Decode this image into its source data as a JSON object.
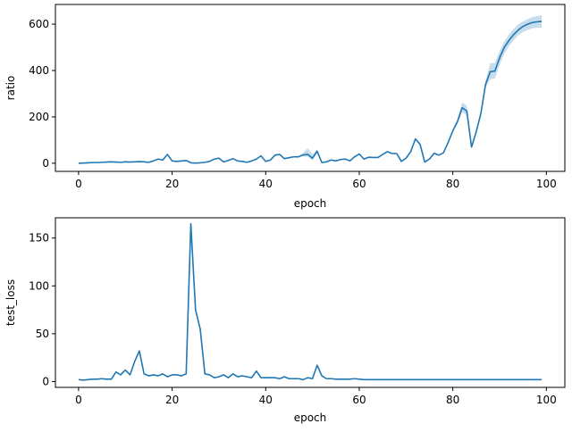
{
  "chart_data": [
    {
      "type": "line",
      "xlabel": "epoch",
      "ylabel": "ratio",
      "xlim": [
        -4.95,
        103.95
      ],
      "ylim": [
        -35,
        685
      ],
      "xticks": [
        0,
        20,
        40,
        60,
        80,
        100
      ],
      "yticks": [
        0,
        200,
        400,
        600
      ],
      "grid": false,
      "color": "#1f77b4",
      "band_color": "#1f77b4",
      "series": [
        {
          "x": [
            0,
            1,
            2,
            3,
            4,
            5,
            6,
            7,
            8,
            9,
            10,
            11,
            12,
            13,
            14,
            15,
            16,
            17,
            18,
            19,
            20,
            21,
            22,
            23,
            24,
            25,
            26,
            27,
            28,
            29,
            30,
            31,
            32,
            33,
            34,
            35,
            36,
            37,
            38,
            39,
            40,
            41,
            42,
            43,
            44,
            45,
            46,
            47,
            48,
            49,
            50,
            51,
            52,
            53,
            54,
            55,
            56,
            57,
            58,
            59,
            60,
            61,
            62,
            63,
            64,
            65,
            66,
            67,
            68,
            69,
            70,
            71,
            72,
            73,
            74,
            75,
            76,
            77,
            78,
            79,
            80,
            81,
            82,
            83,
            84,
            85,
            86,
            87,
            88,
            89,
            90,
            91,
            92,
            93,
            94,
            95,
            96,
            97,
            98,
            99
          ],
          "values": [
            0,
            1,
            2,
            3,
            3,
            4,
            5,
            6,
            5,
            4,
            6,
            5,
            6,
            7,
            6,
            4,
            10,
            18,
            14,
            38,
            10,
            8,
            10,
            12,
            2,
            1,
            2,
            4,
            8,
            18,
            22,
            6,
            12,
            20,
            10,
            8,
            4,
            10,
            18,
            32,
            8,
            14,
            35,
            38,
            20,
            24,
            28,
            28,
            36,
            38,
            22,
            52,
            3,
            6,
            14,
            10,
            16,
            18,
            10,
            28,
            40,
            18,
            26,
            25,
            25,
            38,
            50,
            42,
            42,
            8,
            22,
            50,
            105,
            82,
            5,
            18,
            43,
            35,
            45,
            90,
            140,
            180,
            240,
            225,
            70,
            135,
            215,
            340,
            395,
            398,
            455,
            500,
            530,
            555,
            575,
            590,
            600,
            607,
            610,
            612
          ],
          "upper": [
            0,
            1,
            2,
            3,
            3,
            4,
            5,
            6,
            5,
            4,
            6,
            5,
            6,
            7,
            6,
            4,
            10,
            18,
            14,
            38,
            10,
            8,
            10,
            12,
            2,
            1,
            2,
            4,
            8,
            18,
            22,
            6,
            12,
            20,
            10,
            8,
            4,
            10,
            18,
            32,
            8,
            14,
            35,
            38,
            20,
            24,
            28,
            28,
            45,
            65,
            38,
            60,
            3,
            6,
            14,
            10,
            16,
            18,
            10,
            28,
            40,
            18,
            26,
            25,
            25,
            38,
            50,
            42,
            42,
            8,
            22,
            50,
            110,
            88,
            5,
            18,
            43,
            35,
            45,
            92,
            145,
            190,
            262,
            248,
            76,
            142,
            225,
            355,
            432,
            432,
            485,
            525,
            555,
            580,
            600,
            612,
            622,
            630,
            635,
            638
          ],
          "lower": [
            0,
            1,
            2,
            3,
            3,
            4,
            5,
            6,
            5,
            4,
            6,
            5,
            6,
            7,
            6,
            4,
            10,
            18,
            14,
            38,
            10,
            8,
            10,
            12,
            2,
            1,
            2,
            4,
            8,
            18,
            22,
            6,
            12,
            20,
            10,
            8,
            4,
            10,
            18,
            32,
            8,
            14,
            35,
            38,
            20,
            24,
            28,
            28,
            30,
            28,
            12,
            45,
            3,
            6,
            14,
            10,
            16,
            18,
            10,
            28,
            40,
            18,
            26,
            25,
            25,
            38,
            50,
            42,
            42,
            8,
            22,
            50,
            100,
            75,
            5,
            18,
            43,
            35,
            45,
            88,
            135,
            170,
            220,
            205,
            65,
            128,
            205,
            325,
            362,
            365,
            425,
            472,
            505,
            530,
            552,
            566,
            575,
            582,
            585,
            585
          ]
        }
      ]
    },
    {
      "type": "line",
      "xlabel": "epoch",
      "ylabel": "test_loss",
      "xlim": [
        -4.95,
        103.95
      ],
      "ylim": [
        -6.1,
        171.2
      ],
      "xticks": [
        0,
        20,
        40,
        60,
        80,
        100
      ],
      "yticks": [
        0,
        50,
        100,
        150
      ],
      "grid": false,
      "color": "#1f77b4",
      "series": [
        {
          "x": [
            0,
            1,
            2,
            3,
            4,
            5,
            6,
            7,
            8,
            9,
            10,
            11,
            12,
            13,
            14,
            15,
            16,
            17,
            18,
            19,
            20,
            21,
            22,
            23,
            24,
            25,
            26,
            27,
            28,
            29,
            30,
            31,
            32,
            33,
            34,
            35,
            36,
            37,
            38,
            39,
            40,
            41,
            42,
            43,
            44,
            45,
            46,
            47,
            48,
            49,
            50,
            51,
            52,
            53,
            54,
            55,
            56,
            57,
            58,
            59,
            60,
            61,
            62,
            63,
            64,
            65,
            66,
            67,
            68,
            69,
            70,
            71,
            72,
            73,
            74,
            75,
            76,
            77,
            78,
            79,
            80,
            81,
            82,
            83,
            84,
            85,
            86,
            87,
            88,
            89,
            90,
            91,
            92,
            93,
            94,
            95,
            96,
            97,
            98,
            99
          ],
          "values": [
            2,
            1.5,
            2,
            2.5,
            2.5,
            3,
            2.5,
            2.5,
            10,
            7,
            12,
            7,
            21,
            32,
            8,
            6,
            7,
            6,
            8,
            5,
            7,
            7,
            6,
            8,
            165,
            75,
            55,
            8,
            7,
            4,
            5,
            7,
            4,
            8,
            5,
            6,
            5,
            4,
            11,
            4,
            4,
            4,
            4,
            3,
            5,
            3,
            3,
            3,
            2,
            4,
            3,
            17,
            6,
            3,
            3,
            2.5,
            2.5,
            2.5,
            2.5,
            3,
            2.5,
            2,
            2,
            2,
            2,
            2,
            2,
            2,
            2,
            2,
            2,
            2,
            2,
            2,
            2,
            2,
            2,
            2,
            2,
            2,
            2,
            2,
            2,
            2,
            2,
            2,
            2,
            2,
            2,
            2,
            2,
            2,
            2,
            2,
            2,
            2,
            2,
            2,
            2,
            2
          ]
        }
      ]
    }
  ]
}
